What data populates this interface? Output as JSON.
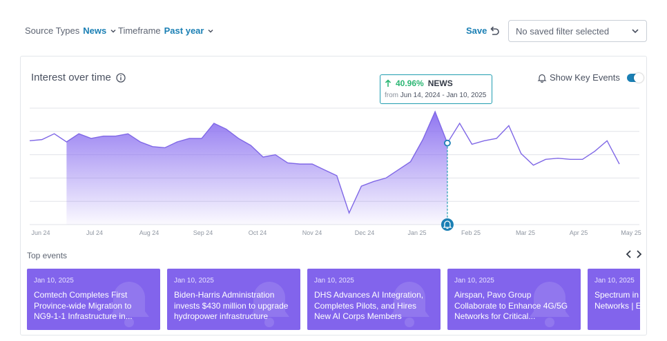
{
  "filters": {
    "source_types": {
      "label": "Source Types",
      "value": "News"
    },
    "timeframe": {
      "label": "Timeframe",
      "value": "Past year"
    }
  },
  "toolbar": {
    "save_label": "Save",
    "saved_filter_placeholder": "No saved filter selected"
  },
  "chart": {
    "title": "Interest over time",
    "show_key_events_label": "Show Key Events",
    "show_key_events_on": true
  },
  "tooltip": {
    "change": "40.96%",
    "source": "NEWS",
    "from_label": "from",
    "range": "Jun 14, 2024 - Jan 10, 2025"
  },
  "chart_data": {
    "type": "area",
    "x_tick_labels": [
      "Jun 24",
      "Jul 24",
      "Aug 24",
      "Sep 24",
      "Oct 24",
      "Nov 24",
      "Dec 24",
      "Jan 25",
      "Feb 25",
      "Mar 25",
      "Apr 25",
      "May 25"
    ],
    "y_grid_levels": [
      0,
      20,
      40,
      60,
      80,
      100
    ],
    "ylim": [
      0,
      100
    ],
    "grid": true,
    "highlight_range_index": [
      3,
      34
    ],
    "key_event_index": 34,
    "series": [
      {
        "values": [
          72,
          73,
          78,
          71,
          78,
          74,
          76,
          76,
          78,
          71,
          67,
          66,
          71,
          74,
          74,
          87,
          82,
          74,
          68,
          58,
          60,
          53,
          52,
          52,
          47,
          42,
          10,
          33,
          37,
          40,
          47,
          54,
          73,
          97,
          70,
          87,
          69,
          72,
          74,
          85,
          61,
          51,
          56,
          57,
          56,
          56,
          63,
          72,
          52
        ]
      }
    ]
  },
  "top_events": {
    "label": "Top events",
    "items": [
      {
        "date": "Jan 10, 2025",
        "title": "Comtech Completes First Province-wide Migration to NG9-1-1 Infrastructure in..."
      },
      {
        "date": "Jan 10, 2025",
        "title": "Biden-Harris Administration invests $430 million to upgrade hydropower infrastructure"
      },
      {
        "date": "Jan 10, 2025",
        "title": "DHS Advances AI Integration, Completes Pilots, and Hires New AI Corps Members"
      },
      {
        "date": "Jan 10, 2025",
        "title": "Airspan, Pavo Group Collaborate to Enhance 4G/5G Networks for Critical..."
      },
      {
        "date": "Jan 10, 2025",
        "title": "Spectrum in Could Enable Networks | E"
      }
    ]
  },
  "colors": {
    "accent": "#1a7fb4",
    "series_line": "#7f67e6",
    "area_fill_top": "#8a6ff0",
    "event_card": "#8264ec",
    "positive": "#2bb673",
    "tooltip_border": "#1f9db0"
  }
}
